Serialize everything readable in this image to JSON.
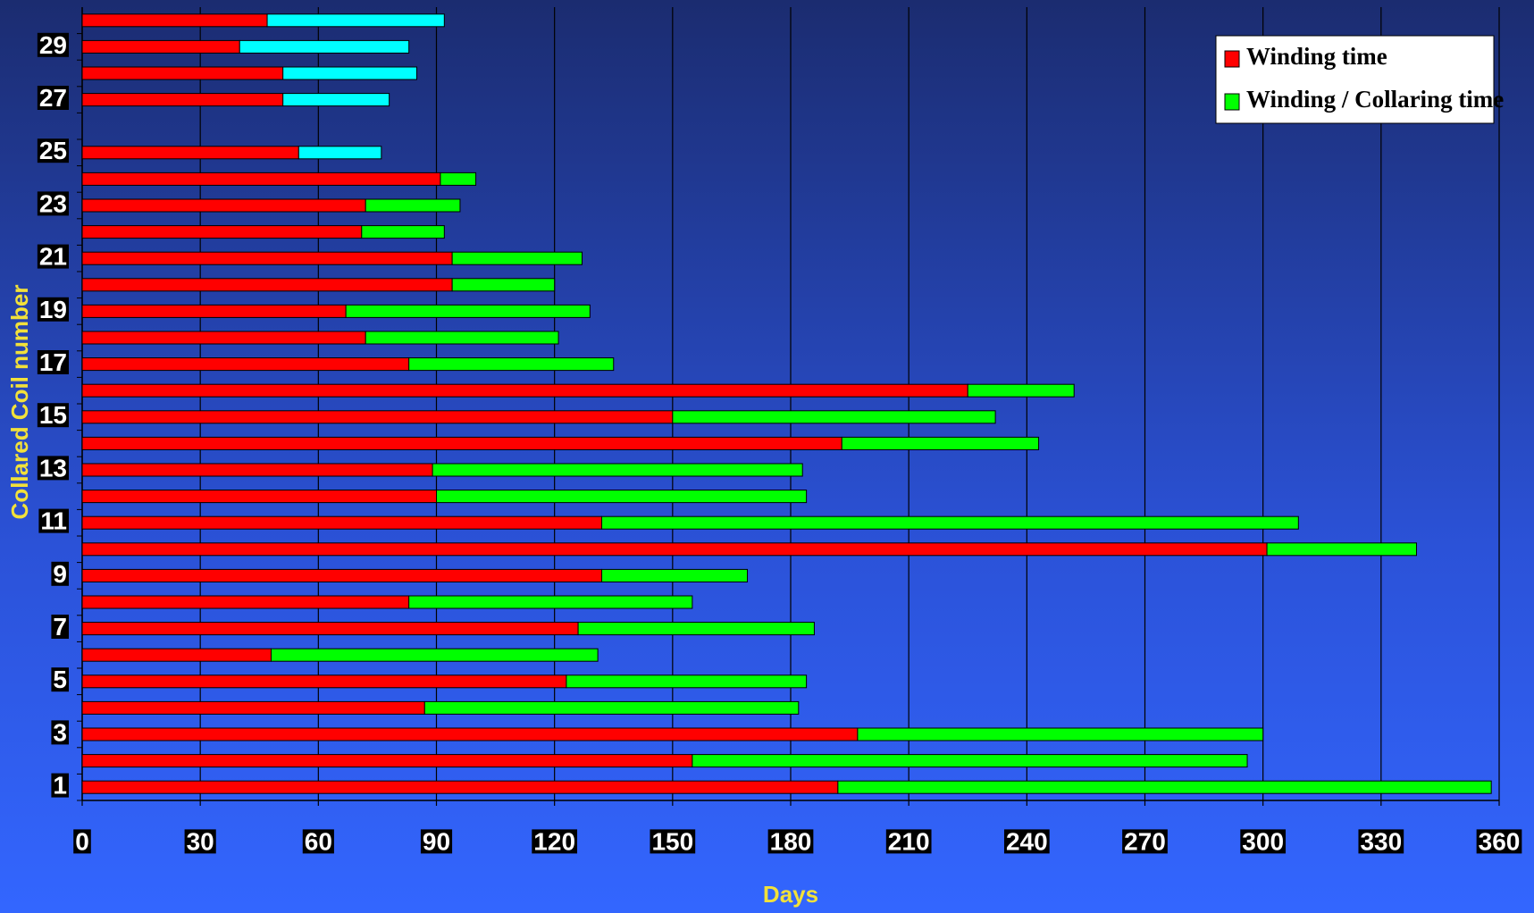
{
  "chart_data": {
    "type": "bar",
    "orientation": "horizontal",
    "stacked": true,
    "xlabel": "Days",
    "ylabel": "Collared Coil number",
    "categories": [
      "1",
      null,
      "3",
      null,
      "5",
      null,
      "7",
      null,
      "9",
      null,
      "11",
      null,
      "13",
      null,
      "15",
      null,
      "17",
      null,
      "19",
      null,
      "21",
      null,
      "23",
      null,
      "25",
      null,
      "27",
      null,
      "29",
      null
    ],
    "series": [
      {
        "name": "Winding time",
        "color": "#ff0000",
        "values": [
          192,
          155,
          197,
          87,
          123,
          48,
          126,
          83,
          132,
          301,
          132,
          90,
          89,
          193,
          150,
          225,
          83,
          72,
          67,
          94,
          94,
          71,
          72,
          91,
          55,
          null,
          51,
          51,
          40,
          47
        ]
      },
      {
        "name": "Winding / Collaring time",
        "color": "#00ff00",
        "colors": [
          "#00ff00",
          "#00ff00",
          "#00ff00",
          "#00ff00",
          "#00ff00",
          "#00ff00",
          "#00ff00",
          "#00ff00",
          "#00ff00",
          "#00ff00",
          "#00ff00",
          "#00ff00",
          "#00ff00",
          "#00ff00",
          "#00ff00",
          "#00ff00",
          "#00ff00",
          "#00ff00",
          "#00ff00",
          "#00ff00",
          "#00ff00",
          "#00ff00",
          "#00ff00",
          "#00ff00",
          "#00ffff",
          "#00ffff",
          "#00ffff",
          "#00ffff",
          "#00ffff",
          "#00ffff"
        ],
        "values": [
          166,
          141,
          103,
          95,
          61,
          83,
          60,
          72,
          37,
          38,
          177,
          94,
          94,
          50,
          82,
          27,
          52,
          49,
          62,
          26,
          33,
          21,
          24,
          9,
          21,
          null,
          27,
          34,
          43,
          45
        ]
      }
    ],
    "xlim": [
      0,
      360
    ],
    "xticks": [
      0,
      30,
      60,
      90,
      120,
      150,
      180,
      210,
      240,
      270,
      300,
      330,
      360
    ],
    "grid": true,
    "legend": "upper right"
  }
}
